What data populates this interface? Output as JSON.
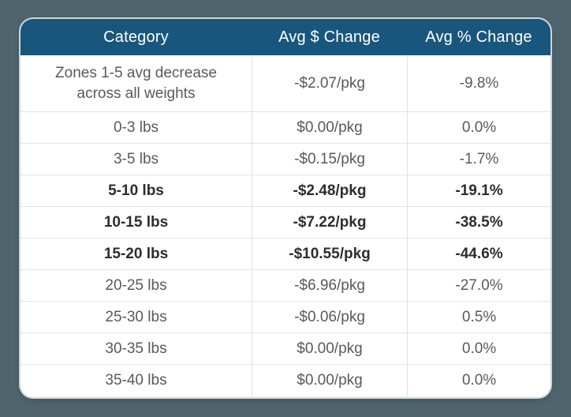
{
  "colors": {
    "page_background": "#4e656e",
    "header_background": "#19567d",
    "header_text": "#ffffff",
    "body_text": "#58595b",
    "emphasis_text": "#2d2d2f",
    "row_divider": "#e4e4e4",
    "card_background": "#ffffff"
  },
  "chart_data": {
    "type": "table",
    "columns": [
      "Category",
      "Avg $ Change",
      "Avg % Change"
    ],
    "rows": [
      {
        "cells": [
          "Zones 1-5 avg decrease across all weights",
          "-$2.07/pkg",
          "-9.8%"
        ],
        "emphasis": false,
        "tall": true
      },
      {
        "cells": [
          "0-3 lbs",
          "$0.00/pkg",
          "0.0%"
        ],
        "emphasis": false,
        "tall": false
      },
      {
        "cells": [
          "3-5 lbs",
          "-$0.15/pkg",
          "-1.7%"
        ],
        "emphasis": false,
        "tall": false
      },
      {
        "cells": [
          "5-10 lbs",
          "-$2.48/pkg",
          "-19.1%"
        ],
        "emphasis": true,
        "tall": false
      },
      {
        "cells": [
          "10-15 lbs",
          "-$7.22/pkg",
          "-38.5%"
        ],
        "emphasis": true,
        "tall": false
      },
      {
        "cells": [
          "15-20 lbs",
          "-$10.55/pkg",
          "-44.6%"
        ],
        "emphasis": true,
        "tall": false
      },
      {
        "cells": [
          "20-25 lbs",
          "-$6.96/pkg",
          "-27.0%"
        ],
        "emphasis": false,
        "tall": false
      },
      {
        "cells": [
          "25-30 lbs",
          "-$0.06/pkg",
          "0.5%"
        ],
        "emphasis": false,
        "tall": false
      },
      {
        "cells": [
          "30-35 lbs",
          "$0.00/pkg",
          "0.0%"
        ],
        "emphasis": false,
        "tall": false
      },
      {
        "cells": [
          "35-40 lbs",
          "$0.00/pkg",
          "0.0%"
        ],
        "emphasis": false,
        "tall": false
      }
    ]
  }
}
